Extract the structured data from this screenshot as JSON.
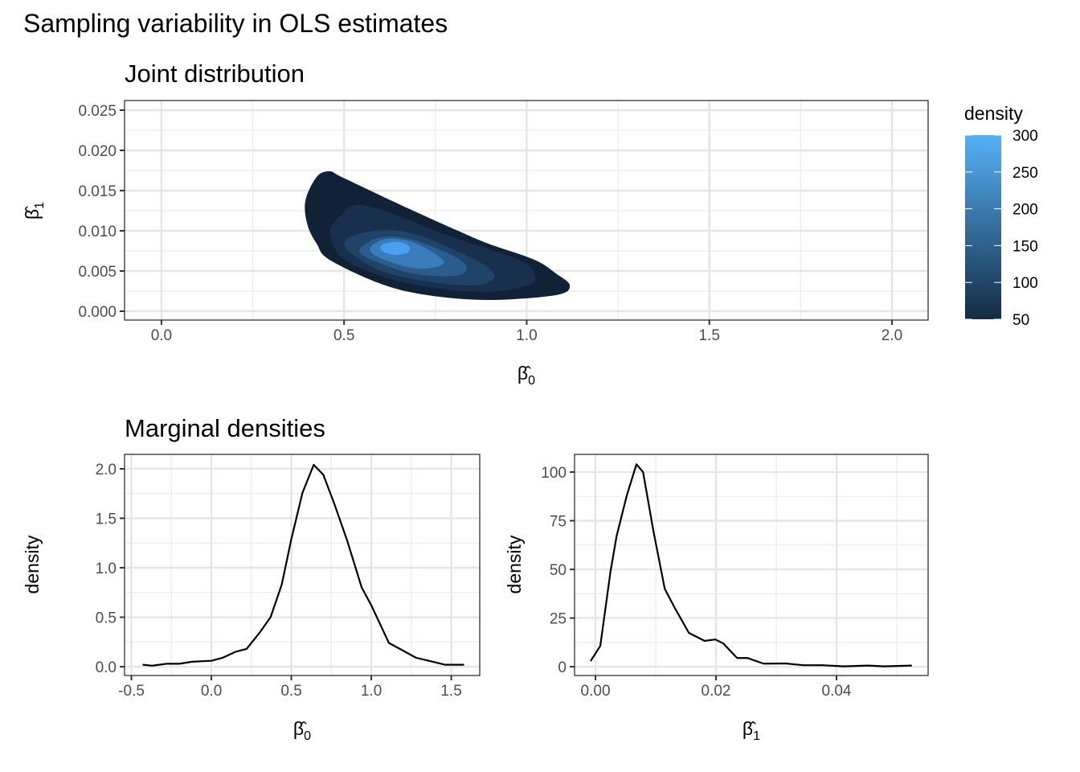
{
  "title": "Sampling variability in OLS estimates",
  "chart_data": [
    {
      "type": "contour",
      "title": "Joint distribution",
      "xlabel": {
        "base": "β̂",
        "sub": "0"
      },
      "ylabel": {
        "base": "β̂",
        "sub": "1"
      },
      "xlim": [
        -0.101,
        2.099
      ],
      "ylim": [
        -0.0011,
        0.0262
      ],
      "xticks": [
        0.0,
        0.5,
        1.0,
        1.5,
        2.0
      ],
      "xtick_labels": [
        "0.0",
        "0.5",
        "1.0",
        "1.5",
        "2.0"
      ],
      "yticks": [
        0.0,
        0.005,
        0.01,
        0.015,
        0.02,
        0.025
      ],
      "ytick_labels": [
        "0.000",
        "0.005",
        "0.010",
        "0.015",
        "0.020",
        "0.025"
      ],
      "grid": true,
      "legend": {
        "title": "density",
        "position": "right",
        "range": [
          50,
          300
        ],
        "ticks": [
          50,
          100,
          150,
          200,
          250,
          300
        ],
        "tick_labels": [
          "50",
          "100",
          "150",
          "200",
          "250",
          "300"
        ],
        "low_color": "#132B43",
        "high_color": "#56B1F7"
      },
      "levels": [
        {
          "level": 50,
          "color": "#112236",
          "points": [
            [
              0.46,
              0.0174
            ],
            [
              0.493,
              0.0167
            ],
            [
              0.618,
              0.014
            ],
            [
              0.728,
              0.0117
            ],
            [
              0.812,
              0.01
            ],
            [
              0.895,
              0.0084
            ],
            [
              1.021,
              0.0064
            ],
            [
              1.08,
              0.0047
            ],
            [
              1.118,
              0.0032
            ],
            [
              1.08,
              0.002
            ],
            [
              0.895,
              0.0014
            ],
            [
              0.728,
              0.002
            ],
            [
              0.601,
              0.0034
            ],
            [
              0.46,
              0.0064
            ],
            [
              0.425,
              0.0084
            ],
            [
              0.4,
              0.0107
            ],
            [
              0.394,
              0.0137
            ],
            [
              0.425,
              0.0167
            ]
          ]
        },
        {
          "level": 100,
          "color": "#18304d",
          "points": [
            [
              0.535,
              0.0132
            ],
            [
              0.618,
              0.0124
            ],
            [
              0.728,
              0.0104
            ],
            [
              0.812,
              0.009
            ],
            [
              0.895,
              0.0077
            ],
            [
              0.979,
              0.0064
            ],
            [
              1.017,
              0.005
            ],
            [
              1.012,
              0.0034
            ],
            [
              0.895,
              0.0024
            ],
            [
              0.728,
              0.003
            ],
            [
              0.601,
              0.0044
            ],
            [
              0.493,
              0.0067
            ],
            [
              0.462,
              0.01
            ],
            [
              0.493,
              0.012
            ]
          ]
        },
        {
          "level": 150,
          "color": "#1f4467",
          "points": [
            [
              0.585,
              0.01
            ],
            [
              0.686,
              0.0097
            ],
            [
              0.812,
              0.0074
            ],
            [
              0.895,
              0.0054
            ],
            [
              0.909,
              0.004
            ],
            [
              0.854,
              0.0032
            ],
            [
              0.728,
              0.0037
            ],
            [
              0.601,
              0.005
            ],
            [
              0.513,
              0.0075
            ],
            [
              0.508,
              0.009
            ]
          ]
        },
        {
          "level": 200,
          "color": "#2a5d8e",
          "points": [
            [
              0.601,
              0.0092
            ],
            [
              0.686,
              0.0089
            ],
            [
              0.794,
              0.007
            ],
            [
              0.836,
              0.0054
            ],
            [
              0.803,
              0.0044
            ],
            [
              0.686,
              0.0047
            ],
            [
              0.576,
              0.0064
            ],
            [
              0.543,
              0.0077
            ]
          ]
        },
        {
          "level": 250,
          "color": "#397dbd",
          "points": [
            [
              0.618,
              0.009
            ],
            [
              0.693,
              0.0085
            ],
            [
              0.77,
              0.0064
            ],
            [
              0.752,
              0.0055
            ],
            [
              0.686,
              0.0054
            ],
            [
              0.594,
              0.0067
            ],
            [
              0.572,
              0.0079
            ]
          ]
        },
        {
          "level": 300,
          "color": "#48a0ee",
          "points": [
            [
              0.61,
              0.0084
            ],
            [
              0.65,
              0.0086
            ],
            [
              0.678,
              0.0081
            ],
            [
              0.675,
              0.0073
            ],
            [
              0.64,
              0.007
            ],
            [
              0.607,
              0.0074
            ],
            [
              0.6,
              0.0079
            ]
          ]
        }
      ]
    },
    {
      "type": "line",
      "title": "Marginal densities",
      "xlabel": {
        "base": "β̂",
        "sub": "0"
      },
      "ylabel": "density",
      "xlim": [
        -0.543,
        1.678
      ],
      "ylim": [
        -0.089,
        2.146
      ],
      "xticks": [
        -0.5,
        0.0,
        0.5,
        1.0,
        1.5
      ],
      "xtick_labels": [
        "-0.5",
        "0.0",
        "0.5",
        "1.0",
        "1.5"
      ],
      "yticks": [
        0.0,
        0.5,
        1.0,
        1.5,
        2.0
      ],
      "ytick_labels": [
        "0.0",
        "0.5",
        "1.0",
        "1.5",
        "2.0"
      ],
      "grid": true,
      "x": [
        -0.43,
        -0.37,
        -0.28,
        -0.2,
        -0.12,
        0.0,
        0.07,
        0.15,
        0.22,
        0.3,
        0.37,
        0.44,
        0.5,
        0.57,
        0.64,
        0.7,
        0.77,
        0.85,
        0.94,
        1.0,
        1.11,
        1.19,
        1.28,
        1.36,
        1.46,
        1.58
      ],
      "y": [
        0.02,
        0.01,
        0.03,
        0.03,
        0.05,
        0.06,
        0.09,
        0.15,
        0.18,
        0.34,
        0.5,
        0.83,
        1.29,
        1.76,
        2.04,
        1.94,
        1.64,
        1.27,
        0.8,
        0.62,
        0.24,
        0.17,
        0.09,
        0.06,
        0.02,
        0.02
      ]
    },
    {
      "type": "line",
      "title": "",
      "xlabel": {
        "base": "β̂",
        "sub": "1"
      },
      "ylabel": "density",
      "xlim": [
        -0.00347,
        0.0552
      ],
      "ylim": [
        -4.5,
        109.1
      ],
      "xticks": [
        0.0,
        0.02,
        0.04
      ],
      "xtick_labels": [
        "0.00",
        "0.02",
        "0.04"
      ],
      "yticks": [
        0,
        25,
        50,
        75,
        100
      ],
      "ytick_labels": [
        "0",
        "25",
        "50",
        "75",
        "100"
      ],
      "grid": true,
      "x": [
        -0.0008,
        0.0008,
        0.0025,
        0.0035,
        0.0052,
        0.0068,
        0.0079,
        0.0096,
        0.0115,
        0.0132,
        0.0155,
        0.0181,
        0.0199,
        0.0212,
        0.0235,
        0.0252,
        0.0279,
        0.0315,
        0.0345,
        0.0376,
        0.0412,
        0.0452,
        0.0479,
        0.0525
      ],
      "y": [
        2.9,
        10.7,
        49,
        67,
        88,
        104,
        100,
        70,
        40,
        30,
        17.4,
        13.3,
        14,
        12,
        4.5,
        4.5,
        1.6,
        1.7,
        0.8,
        0.8,
        0.2,
        0.6,
        0.2,
        0.6
      ]
    }
  ]
}
